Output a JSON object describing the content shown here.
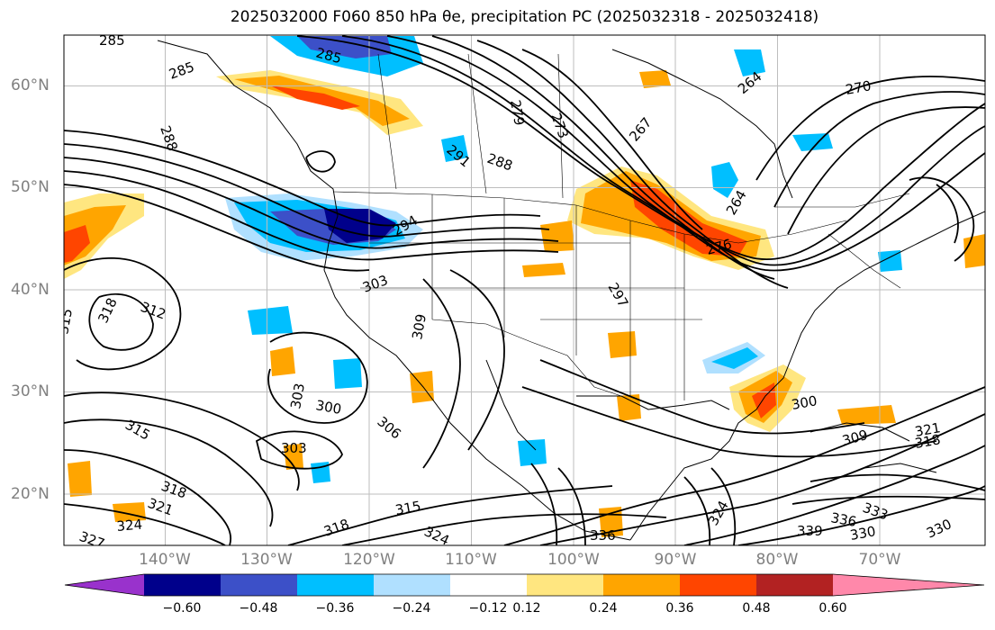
{
  "title": "2025032000 F060 850 hPa θe, precipitation PC (2025032318 - 2025032418)",
  "map": {
    "lat_labels": [
      {
        "text": "60°N",
        "lat": 60
      },
      {
        "text": "50°N",
        "lat": 50
      },
      {
        "text": "40°N",
        "lat": 40
      },
      {
        "text": "30°N",
        "lat": 30
      },
      {
        "text": "20°N",
        "lat": 20
      }
    ],
    "lon_labels": [
      {
        "text": "140°W",
        "lon": -140
      },
      {
        "text": "130°W",
        "lon": -130
      },
      {
        "text": "120°W",
        "lon": -120
      },
      {
        "text": "110°W",
        "lon": -110
      },
      {
        "text": "100°W",
        "lon": -100
      },
      {
        "text": "90°W",
        "lon": -90
      },
      {
        "text": "80°W",
        "lon": -80
      },
      {
        "text": "70°W",
        "lon": -70
      }
    ],
    "contour_labels": [
      "285",
      "285",
      "285",
      "288",
      "291",
      "288",
      "279",
      "273",
      "267",
      "264",
      "270",
      "264",
      "276",
      "294",
      "303",
      "297",
      "312",
      "318",
      "315",
      "309",
      "303",
      "300",
      "306",
      "303",
      "315",
      "318",
      "321",
      "324",
      "327",
      "318",
      "315",
      "324",
      "336",
      "324",
      "339",
      "336",
      "333",
      "330",
      "330",
      "318",
      "321",
      "309",
      "300"
    ]
  },
  "colorbar": {
    "ticks": [
      "−0.60",
      "−0.48",
      "−0.36",
      "−0.24",
      "−0.12",
      "0.12",
      "0.24",
      "0.36",
      "0.48",
      "0.60"
    ],
    "colors": [
      "#9932cc",
      "#00008b",
      "#3c50c8",
      "#00bfff",
      "#b0e0ff",
      "#ffffff",
      "#ffe680",
      "#ffa500",
      "#ff4500",
      "#b22222",
      "#ff88aa"
    ]
  }
}
